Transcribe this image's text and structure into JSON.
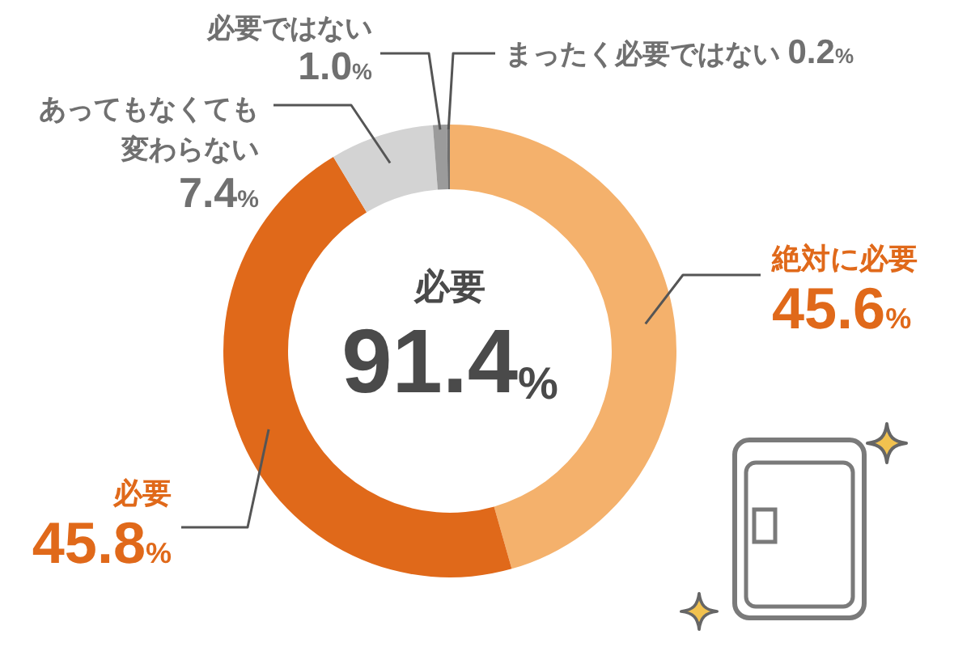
{
  "chart_data": {
    "type": "donut",
    "categories": [
      "絶対に必要",
      "必要",
      "あってもなくても変わらない",
      "必要ではない",
      "まったく必要ではない"
    ],
    "values": [
      45.6,
      45.8,
      7.4,
      1.0,
      0.2
    ],
    "colors": [
      "#f4b16c",
      "#e0691a",
      "#d3d3d3",
      "#9b9b9b",
      "#6e6e6e"
    ],
    "value_labels": [
      "45.6%",
      "45.8%",
      "7.4%",
      "1.0%",
      "0.2%"
    ],
    "annotations": [
      "必要",
      "91.4%"
    ]
  }
}
